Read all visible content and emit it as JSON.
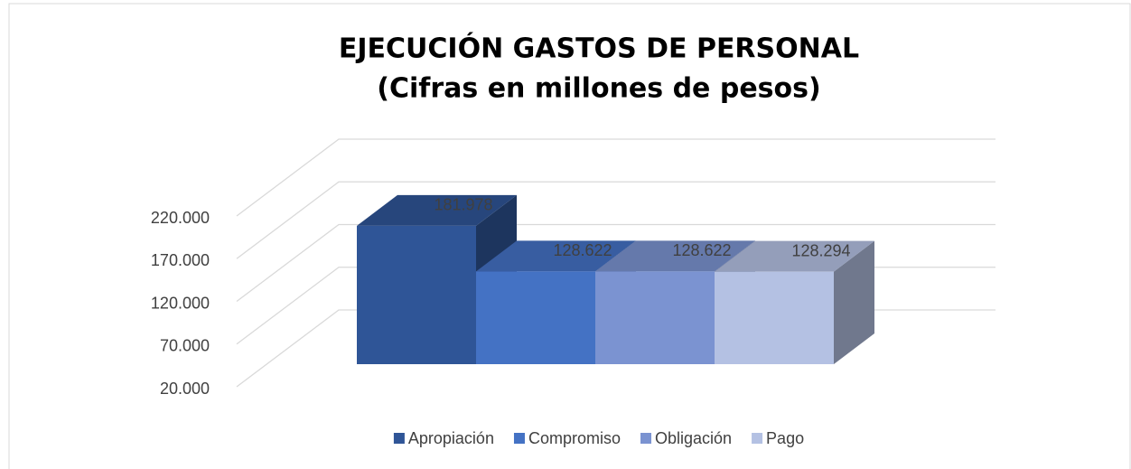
{
  "chart_data": {
    "type": "bar3d",
    "title": "EJECUCIÓN GASTOS DE PERSONAL",
    "subtitle": "(Cifras en millones de pesos)",
    "categories": [
      ""
    ],
    "series": [
      {
        "name": "Apropiación",
        "color": "#2f5597",
        "values": [
          181978
        ],
        "value_labels": [
          "181.978"
        ]
      },
      {
        "name": "Compromiso",
        "color": "#4472c4",
        "values": [
          128622
        ],
        "value_labels": [
          "128.622"
        ]
      },
      {
        "name": "Obligación",
        "color": "#7b93d1",
        "values": [
          128622
        ],
        "value_labels": [
          "128.622"
        ]
      },
      {
        "name": "Pago",
        "color": "#b4c1e3",
        "values": [
          128294
        ],
        "value_labels": [
          "128.294"
        ]
      }
    ],
    "ylim": [
      20000,
      220000
    ],
    "yticks": [
      {
        "value": 20000,
        "label": "20.000"
      },
      {
        "value": 70000,
        "label": "70.000"
      },
      {
        "value": 120000,
        "label": "120.000"
      },
      {
        "value": 170000,
        "label": "170.000"
      },
      {
        "value": 220000,
        "label": "220.000"
      }
    ],
    "grid": true,
    "legend": "bottom"
  }
}
